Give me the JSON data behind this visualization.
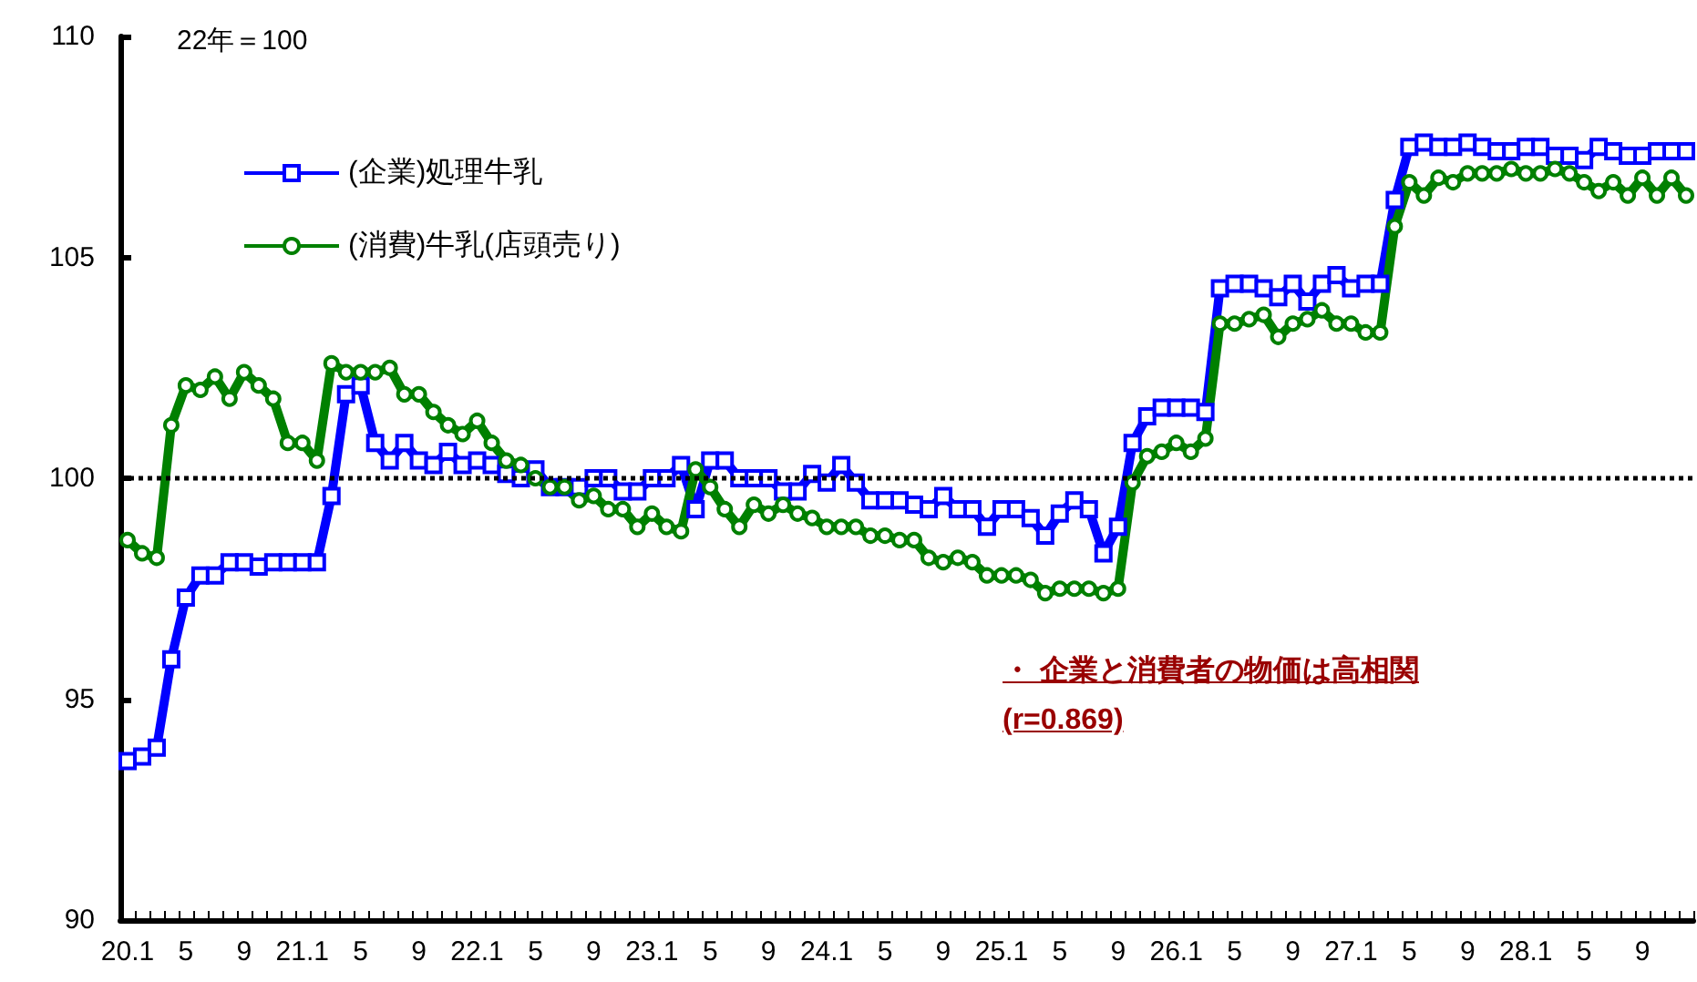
{
  "chart_data": {
    "type": "line",
    "categories": [
      "20.1",
      null,
      null,
      null,
      "5",
      null,
      null,
      null,
      "9",
      null,
      null,
      null,
      "21.1",
      null,
      null,
      null,
      "5",
      null,
      null,
      null,
      "9",
      null,
      null,
      null,
      "22.1",
      null,
      null,
      null,
      "5",
      null,
      null,
      null,
      "9",
      null,
      null,
      null,
      "23.1",
      null,
      null,
      null,
      "5",
      null,
      null,
      null,
      "9",
      null,
      null,
      null,
      "24.1",
      null,
      null,
      null,
      "5",
      null,
      null,
      null,
      "9",
      null,
      null,
      null,
      "25.1",
      null,
      null,
      null,
      "5",
      null,
      null,
      null,
      "9",
      null,
      null,
      null,
      "26.1",
      null,
      null,
      null,
      "5",
      null,
      null,
      null,
      "9",
      null,
      null,
      null,
      "27.1",
      null,
      null,
      null,
      "5",
      null,
      null,
      null,
      "9",
      null,
      null,
      null,
      "28.1",
      null,
      null,
      null,
      "5",
      null,
      null,
      null,
      "9",
      null,
      null,
      null
    ],
    "series": [
      {
        "name": "(企業)処理牛乳",
        "color": "#0000ff",
        "marker": "square",
        "values": [
          93.6,
          93.7,
          93.9,
          95.9,
          97.3,
          97.8,
          97.8,
          98.1,
          98.1,
          98.0,
          98.1,
          98.1,
          98.1,
          98.1,
          99.6,
          101.9,
          102.1,
          100.8,
          100.4,
          100.8,
          100.4,
          100.3,
          100.6,
          100.3,
          100.4,
          100.3,
          100.1,
          100.0,
          100.2,
          99.8,
          99.8,
          99.8,
          100.0,
          100.0,
          99.7,
          99.7,
          100.0,
          100.0,
          100.3,
          99.3,
          100.4,
          100.4,
          100.0,
          100.0,
          100.0,
          99.7,
          99.7,
          100.1,
          99.9,
          100.3,
          99.9,
          99.5,
          99.5,
          99.5,
          99.4,
          99.3,
          99.6,
          99.3,
          99.3,
          98.9,
          99.3,
          99.3,
          99.1,
          98.7,
          99.2,
          99.5,
          99.3,
          98.3,
          98.9,
          100.8,
          101.4,
          101.6,
          101.6,
          101.6,
          101.5,
          104.3,
          104.4,
          104.4,
          104.3,
          104.1,
          104.4,
          104.0,
          104.4,
          104.6,
          104.3,
          104.4,
          104.4,
          106.3,
          107.5,
          107.6,
          107.5,
          107.5,
          107.6,
          107.5,
          107.4,
          107.4,
          107.5,
          107.5,
          107.3,
          107.3,
          107.2,
          107.5,
          107.4,
          107.3,
          107.3,
          107.4,
          107.4,
          107.4
        ]
      },
      {
        "name": "(消費)牛乳(店頭売り)",
        "color": "#008000",
        "marker": "circle",
        "values": [
          98.6,
          98.3,
          98.2,
          101.2,
          102.1,
          102.0,
          102.3,
          101.8,
          102.4,
          102.1,
          101.8,
          100.8,
          100.8,
          100.4,
          102.6,
          102.4,
          102.4,
          102.4,
          102.5,
          101.9,
          101.9,
          101.5,
          101.2,
          101.0,
          101.3,
          100.8,
          100.4,
          100.3,
          100.0,
          99.8,
          99.8,
          99.5,
          99.6,
          99.3,
          99.3,
          98.9,
          99.2,
          98.9,
          98.8,
          100.2,
          99.8,
          99.3,
          98.9,
          99.4,
          99.2,
          99.4,
          99.2,
          99.1,
          98.9,
          98.9,
          98.9,
          98.7,
          98.7,
          98.6,
          98.6,
          98.2,
          98.1,
          98.2,
          98.1,
          97.8,
          97.8,
          97.8,
          97.7,
          97.4,
          97.5,
          97.5,
          97.5,
          97.4,
          97.5,
          99.9,
          100.5,
          100.6,
          100.8,
          100.6,
          100.9,
          103.5,
          103.5,
          103.6,
          103.7,
          103.2,
          103.5,
          103.6,
          103.8,
          103.5,
          103.5,
          103.3,
          103.3,
          105.7,
          106.7,
          106.4,
          106.8,
          106.7,
          106.9,
          106.9,
          106.9,
          107.0,
          106.9,
          106.9,
          107.0,
          106.9,
          106.7,
          106.5,
          106.7,
          106.4,
          106.8,
          106.4,
          106.8,
          106.4
        ]
      }
    ],
    "ylim": [
      90,
      110
    ],
    "yticks": [
      90,
      95,
      100,
      105,
      110
    ],
    "grid": false,
    "legend": "top left",
    "ref_lines": [
      {
        "axis": "y",
        "value": 100,
        "color": "#000000",
        "line_style": "dotted"
      }
    ],
    "annotations": [
      "22年＝100",
      "・ 企業と消費者の物価は高相関",
      "(r=0.869)"
    ]
  }
}
